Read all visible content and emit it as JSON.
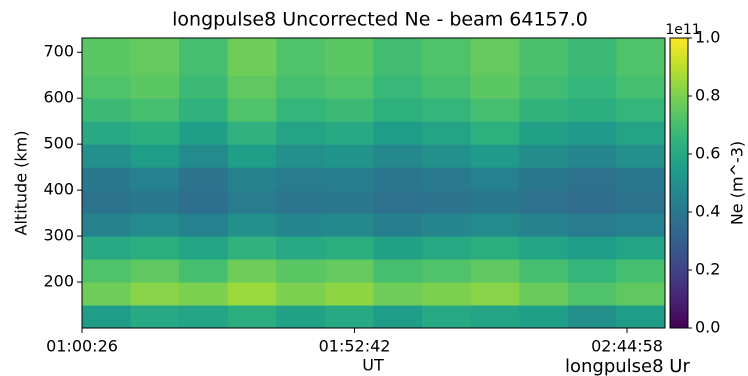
{
  "chart_data": {
    "type": "heatmap",
    "title": "longpulse8 Uncorrected Ne - beam 64157.0",
    "x_label": "UT",
    "y_label": "Altitude (km)",
    "colorbar_label": "Ne (m^-3)",
    "colorbar_offset": "1e11",
    "clipped_text": "longpulse8 Ur",
    "xlim": [
      3626,
      10335
    ],
    "xticks": [
      {
        "value": 3626,
        "label": "01:00:26"
      },
      {
        "value": 6762,
        "label": "01:52:42"
      },
      {
        "value": 9898,
        "label": "02:44:58"
      }
    ],
    "ylim": [
      100,
      731
    ],
    "yticks": [
      200,
      300,
      400,
      500,
      600,
      700
    ],
    "clim": [
      0,
      1
    ],
    "cticks": [
      {
        "value": 0,
        "label": "0.0"
      },
      0.2,
      0.4,
      0.6,
      0.8,
      {
        "value": 1,
        "label": "1.0"
      }
    ],
    "colormap": "viridis",
    "x_bins": [
      3626,
      4185,
      4744,
      5303,
      5862,
      6421,
      6980,
      7539,
      8098,
      8657,
      9216,
      9775,
      10335
    ],
    "y_bins": [
      100,
      150,
      200,
      250,
      300,
      350,
      400,
      450,
      500,
      550,
      600,
      650,
      731
    ],
    "z": [
      [
        0.55,
        0.6,
        0.58,
        0.62,
        0.57,
        0.6,
        0.55,
        0.6,
        0.58,
        0.56,
        0.5,
        0.55
      ],
      [
        0.78,
        0.82,
        0.8,
        0.85,
        0.8,
        0.83,
        0.78,
        0.8,
        0.82,
        0.77,
        0.72,
        0.75
      ],
      [
        0.72,
        0.75,
        0.7,
        0.78,
        0.74,
        0.76,
        0.7,
        0.72,
        0.75,
        0.7,
        0.66,
        0.7
      ],
      [
        0.6,
        0.62,
        0.58,
        0.64,
        0.6,
        0.62,
        0.57,
        0.6,
        0.62,
        0.58,
        0.55,
        0.58
      ],
      [
        0.45,
        0.48,
        0.44,
        0.5,
        0.46,
        0.47,
        0.43,
        0.46,
        0.48,
        0.45,
        0.42,
        0.44
      ],
      [
        0.38,
        0.4,
        0.36,
        0.42,
        0.39,
        0.4,
        0.37,
        0.38,
        0.4,
        0.37,
        0.35,
        0.38
      ],
      [
        0.4,
        0.44,
        0.38,
        0.45,
        0.42,
        0.43,
        0.39,
        0.41,
        0.44,
        0.4,
        0.37,
        0.4
      ],
      [
        0.5,
        0.55,
        0.48,
        0.56,
        0.5,
        0.52,
        0.47,
        0.5,
        0.54,
        0.49,
        0.46,
        0.5
      ],
      [
        0.6,
        0.62,
        0.56,
        0.64,
        0.58,
        0.6,
        0.55,
        0.58,
        0.63,
        0.57,
        0.54,
        0.58
      ],
      [
        0.68,
        0.7,
        0.64,
        0.72,
        0.66,
        0.68,
        0.63,
        0.66,
        0.7,
        0.65,
        0.62,
        0.66
      ],
      [
        0.72,
        0.74,
        0.68,
        0.75,
        0.7,
        0.72,
        0.67,
        0.7,
        0.74,
        0.69,
        0.66,
        0.7
      ],
      [
        0.74,
        0.76,
        0.7,
        0.78,
        0.72,
        0.74,
        0.69,
        0.72,
        0.76,
        0.71,
        0.68,
        0.72
      ]
    ]
  }
}
